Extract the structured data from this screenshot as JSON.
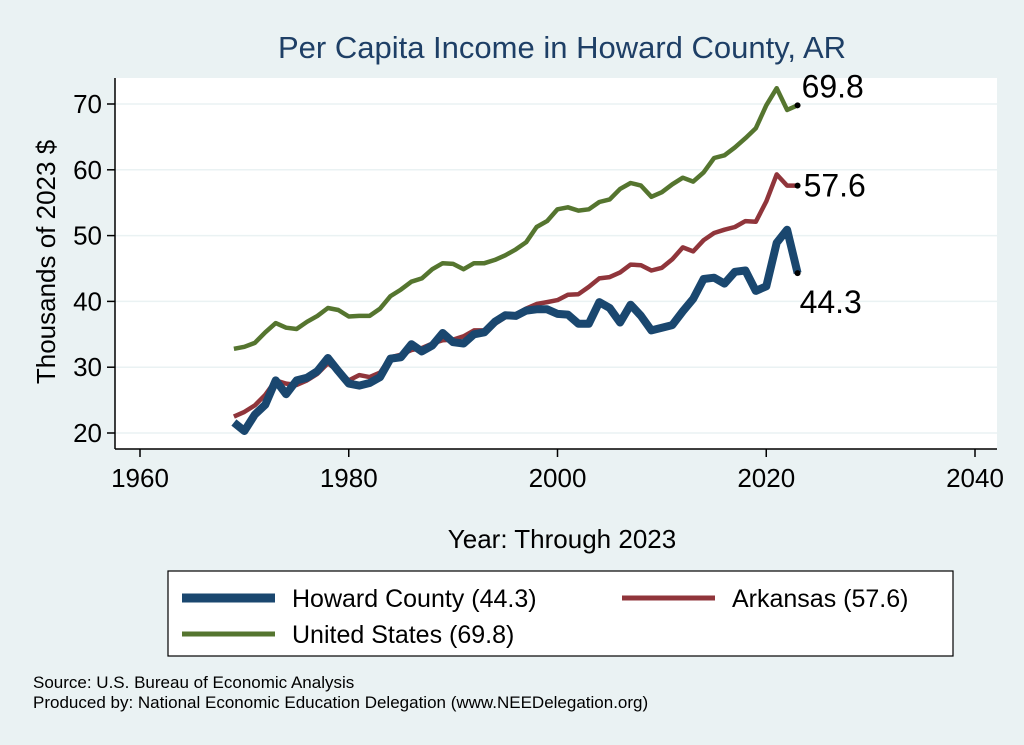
{
  "chart_data": {
    "type": "line",
    "title": "Per Capita Income in Howard County, AR",
    "xlabel": "Year: Through 2023",
    "ylabel": "Thousands of 2023 $",
    "xlim": [
      1960,
      2040
    ],
    "ylim": [
      20,
      75
    ],
    "xticks": [
      1960,
      1980,
      2000,
      2020,
      2040
    ],
    "yticks": [
      20,
      30,
      40,
      50,
      60,
      70
    ],
    "grid": true,
    "legend_position": "bottom",
    "x": [
      1969,
      1970,
      1971,
      1972,
      1973,
      1974,
      1975,
      1976,
      1977,
      1978,
      1979,
      1980,
      1981,
      1982,
      1983,
      1984,
      1985,
      1986,
      1987,
      1988,
      1989,
      1990,
      1991,
      1992,
      1993,
      1994,
      1995,
      1996,
      1997,
      1998,
      1999,
      2000,
      2001,
      2002,
      2003,
      2004,
      2005,
      2006,
      2007,
      2008,
      2009,
      2010,
      2011,
      2012,
      2013,
      2014,
      2015,
      2016,
      2017,
      2018,
      2019,
      2020,
      2021,
      2022,
      2023
    ],
    "series": [
      {
        "name": "Howard County (44.3)",
        "color": "#1a476f",
        "values": [
          21.6,
          20.3,
          22.8,
          24.3,
          28.0,
          25.9,
          28.0,
          28.4,
          29.4,
          31.4,
          29.4,
          27.5,
          27.2,
          27.6,
          28.5,
          31.3,
          31.5,
          33.5,
          32.4,
          33.3,
          35.2,
          33.8,
          33.6,
          35.0,
          35.3,
          36.9,
          37.9,
          37.8,
          38.6,
          38.8,
          38.8,
          38.1,
          38.0,
          36.6,
          36.6,
          39.9,
          39.0,
          36.8,
          39.5,
          37.8,
          35.6,
          36.0,
          36.4,
          38.5,
          40.4,
          43.4,
          43.6,
          42.7,
          44.5,
          44.7,
          41.6,
          42.3,
          48.9,
          50.9,
          44.3
        ]
      },
      {
        "name": "Arkansas (57.6)",
        "color": "#90353b",
        "values": [
          22.5,
          23.2,
          24.2,
          25.8,
          28.0,
          27.5,
          27.3,
          28.0,
          29.0,
          30.6,
          29.4,
          28.0,
          28.8,
          28.5,
          29.2,
          31.5,
          31.9,
          32.6,
          32.9,
          33.6,
          34.1,
          34.2,
          34.7,
          35.6,
          35.6,
          36.6,
          37.6,
          38.0,
          38.9,
          39.6,
          39.9,
          40.2,
          41.0,
          41.1,
          42.2,
          43.5,
          43.7,
          44.4,
          45.6,
          45.5,
          44.7,
          45.1,
          46.4,
          48.2,
          47.6,
          49.3,
          50.4,
          50.9,
          51.3,
          52.2,
          52.1,
          55.2,
          59.3,
          57.6,
          57.6
        ]
      },
      {
        "name": "United States (69.8)",
        "color": "#55752f",
        "values": [
          32.8,
          33.1,
          33.7,
          35.3,
          36.7,
          36.0,
          35.8,
          36.9,
          37.8,
          39.0,
          38.7,
          37.7,
          37.8,
          37.8,
          38.9,
          40.8,
          41.8,
          43.0,
          43.5,
          44.9,
          45.8,
          45.7,
          44.9,
          45.8,
          45.8,
          46.3,
          47.0,
          47.9,
          49.0,
          51.3,
          52.2,
          54.0,
          54.3,
          53.8,
          54.0,
          55.1,
          55.5,
          57.1,
          58.0,
          57.6,
          55.9,
          56.6,
          57.8,
          58.8,
          58.2,
          59.6,
          61.8,
          62.2,
          63.4,
          64.8,
          66.3,
          69.8,
          72.4,
          69.1,
          69.8
        ]
      }
    ],
    "end_labels": [
      "44.3",
      "57.6",
      "69.8"
    ]
  },
  "legend": {
    "items": [
      {
        "label": "Howard County (44.3)",
        "color": "#1a476f"
      },
      {
        "label": "Arkansas (57.6)",
        "color": "#90353b"
      },
      {
        "label": "United States (69.8)",
        "color": "#55752f"
      }
    ]
  },
  "notes": {
    "source": "Source: U.S. Bureau of Economic Analysis",
    "produced": "Produced by: National Economic Education Delegation (www.NEEDelegation.org)"
  },
  "colors": {
    "outer_background": "#eaf2f3",
    "plot_background": "#ffffff",
    "grid": "#eaf2f3",
    "title": "#1e3f66"
  }
}
